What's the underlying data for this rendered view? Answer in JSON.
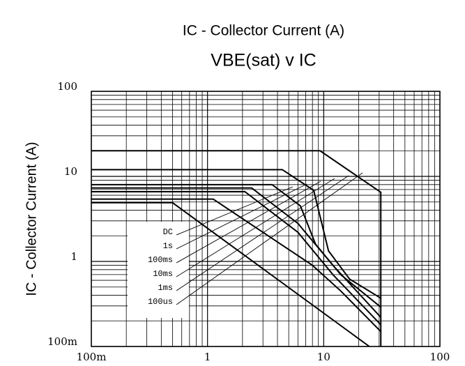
{
  "chart_data": {
    "type": "line",
    "title": "IC - Collector Current (A)",
    "subtitle": "VBE(sat) v IC",
    "y_label": "IC - Collector Current (A)",
    "log_x": true,
    "log_y": true,
    "grid": true,
    "xlim": [
      0.1,
      100
    ],
    "ylim": [
      0.1,
      100
    ],
    "xticks": [
      {
        "value": 0.1,
        "label": "100m"
      },
      1,
      10,
      100
    ],
    "yticks": [
      {
        "value": 0.1,
        "label": "100m"
      },
      1,
      10,
      100
    ],
    "series": [
      {
        "color": "#000000",
        "x": [
          0.1,
          9.3,
          31,
          31
        ],
        "values": [
          20,
          20,
          6.5,
          0.1
        ]
      },
      {
        "name": "100us",
        "color": "#000000",
        "x": [
          0.1,
          4.4,
          8.2,
          11,
          16.7,
          31
        ],
        "values": [
          12,
          12,
          6.85,
          1.33,
          0.62,
          0.37
        ]
      },
      {
        "name": "1ms",
        "color": "#000000",
        "x": [
          0.1,
          3.6,
          6.3,
          8.5,
          14,
          31
        ],
        "values": [
          8,
          8,
          4.5,
          1.6,
          0.7,
          0.29
        ]
      },
      {
        "name": "10ms",
        "color": "#000000",
        "x": [
          0.1,
          2.4,
          6,
          12,
          31
        ],
        "values": [
          7.3,
          7.3,
          2.8,
          0.9,
          0.22
        ]
      },
      {
        "name": "100ms",
        "color": "#000000",
        "x": [
          0.1,
          2.1,
          6,
          12,
          31
        ],
        "values": [
          6.6,
          6.6,
          2.2,
          0.7,
          0.18
        ]
      },
      {
        "name": "1s",
        "color": "#000000",
        "x": [
          0.1,
          1.12,
          8,
          14,
          31
        ],
        "values": [
          5.4,
          5.4,
          0.9,
          0.45,
          0.15
        ]
      },
      {
        "name": "DC",
        "color": "#000000",
        "x": [
          0.1,
          0.5,
          24.7
        ],
        "values": [
          4.9,
          4.9,
          0.1
        ]
      }
    ]
  }
}
